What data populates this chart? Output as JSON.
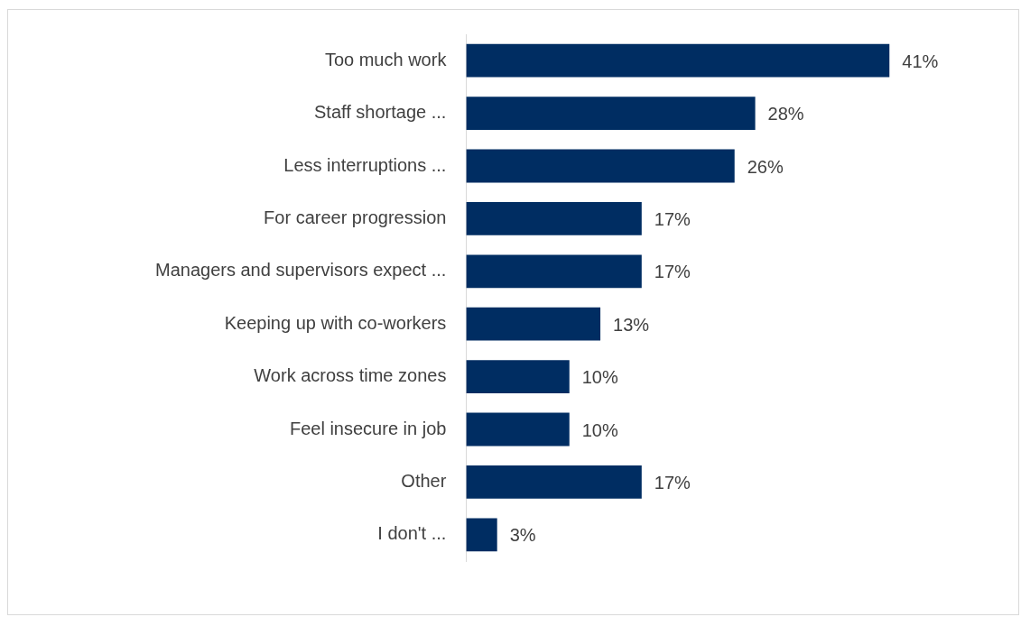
{
  "chart_data": {
    "type": "bar",
    "orientation": "horizontal",
    "categories": [
      "Too much work",
      "Staff shortage ...",
      "Less interruptions ...",
      "For career progression",
      "Managers and supervisors expect ...",
      "Keeping up with co-workers",
      "Work across time zones",
      "Feel insecure in job",
      "Other",
      "I don't ..."
    ],
    "values": [
      41,
      28,
      26,
      17,
      17,
      13,
      10,
      10,
      17,
      3
    ],
    "value_labels": [
      "41%",
      "28%",
      "26%",
      "17%",
      "17%",
      "13%",
      "10%",
      "10%",
      "17%",
      "3%"
    ],
    "color": "#002d62"
  }
}
